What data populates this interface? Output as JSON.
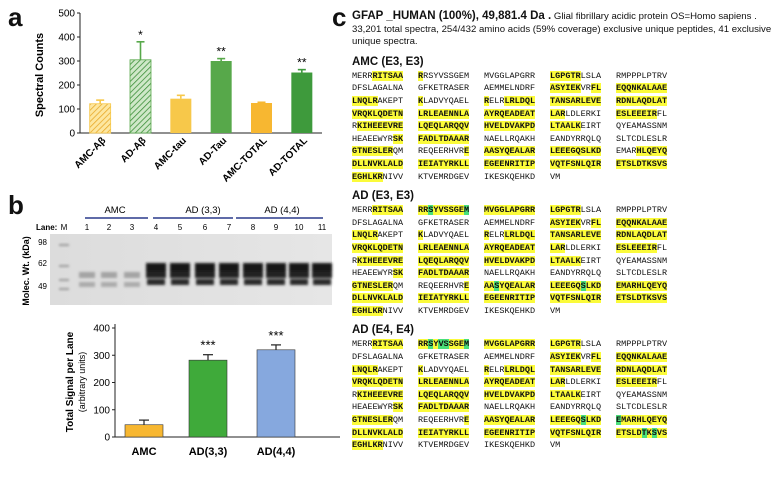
{
  "panel_a": {
    "letter": "a",
    "chart_data": {
      "type": "bar",
      "ylabel": "Spectral Counts",
      "ylim": [
        0,
        500
      ],
      "yticks": [
        0,
        100,
        200,
        300,
        400,
        500
      ],
      "categories": [
        "AMC-Aβ",
        "AD-Aβ",
        "AMC-tau",
        "AD-Tau",
        "AMC-TOTAL",
        "AD-TOTAL"
      ],
      "values": [
        122,
        305,
        143,
        300,
        125,
        252
      ],
      "errors": [
        15,
        75,
        14,
        10,
        3,
        12
      ],
      "significance": [
        "",
        "*",
        "",
        "**",
        "",
        "**"
      ],
      "colors": [
        "#f7c84a",
        "#57a84a",
        "#f7c84a",
        "#57a84a",
        "#f7b731",
        "#3e9a3c"
      ],
      "hatched": [
        true,
        true,
        false,
        false,
        false,
        false
      ]
    }
  },
  "panel_b": {
    "letter": "b",
    "blot": {
      "group_labels": [
        "AMC",
        "AD (3,3)",
        "AD (4,4)"
      ],
      "lane_label": "Lane:",
      "lanes": [
        "M",
        "1",
        "2",
        "3",
        "4",
        "5",
        "6",
        "7",
        "8",
        "9",
        "10",
        "11"
      ],
      "ylabel": "Molec. Wt. (kDa)",
      "markers": [
        "98",
        "62",
        "49"
      ]
    },
    "chart_data": {
      "type": "bar",
      "ylabel": "Total Signal per Lane",
      "ylabel_sub": "(arbitrary units)",
      "ylim": [
        0,
        400
      ],
      "yticks": [
        0,
        100,
        200,
        300,
        400
      ],
      "categories": [
        "AMC",
        "AD(3,3)",
        "AD(4,4)"
      ],
      "values": [
        45,
        282,
        320
      ],
      "errors": [
        17,
        20,
        18
      ],
      "significance": [
        "",
        "***",
        "***"
      ],
      "colors": [
        "#f7b731",
        "#3faa3a",
        "#86a8de"
      ]
    }
  },
  "panel_c": {
    "letter": "c",
    "header_bold": "GFAP _HUMAN (100%), 49,881.4 Da .",
    "header_rest": "Glial fibrillary acidic protein OS=Homo sapiens . 33,201 total spectra, 254/432 amino acids (59% coverage) exclusive unique peptides, 41 exclusive unique spectra.",
    "colors": {
      "coverage": "#fbfb3a",
      "modification": "#49e07a"
    },
    "blocks": [
      {
        "title": "AMC (E3, E3)",
        "rows": [
          [
            "MERR|RITSAA|",
            "|R|RSYVSSGEM",
            "MVGGLAPGRR",
            "|LGPGTR|LSLA",
            "RMPPPLPTRV"
          ],
          [
            "DFSLAGALNA",
            "GFKETRASER",
            "AEMMELNDRF",
            "|ASYIEK|VR|FL|",
            "|EQQNKALAAE|"
          ],
          [
            "|LNQLR|AKEPT",
            "|K|LADVYQAEL",
            "|R|ELR|LRLDQL|",
            "|TANSARLEVE|",
            "|RDNLAQDLAT|"
          ],
          [
            "|VRQKLQDETN|",
            "|LRLEAENNLA|",
            "|AYRQEADEAT|",
            "|LAR|LDLERKI",
            "|ESLEEEIR|FL"
          ],
          [
            "R|KIHEEEVRE|",
            "|LQEQLARQQV|",
            "|HVELDVAKPD|",
            "|LTAALK|EIRT",
            "QYEAMASSNM"
          ],
          [
            "HEAEEWYR|SK|",
            "|FADLTDAAAR|",
            "NAELLRQAKH",
            "EANDYRRQLQ",
            "SLTCDLESLR"
          ],
          [
            "|GTNESLER|QM",
            "REQEERHVR|E|",
            "|AASYQEALAR|",
            "|LEEEGQSLKD|",
            "EMAR|HLQEYQ|"
          ],
          [
            "|DLLNVKLALD|",
            "|IEIATYRKLL|",
            "|EGEENRITIP|",
            "|VQTFSNLQIR|",
            "|ETSLDTKSVS|"
          ],
          [
            "|EGHLKR|NIVV",
            "KTVEMRDGEV",
            "IKESKQEHKD",
            "VM",
            ""
          ]
        ]
      },
      {
        "title": "AD (E3, E3)",
        "rows": [
          [
            "MERR|RITSAA|",
            "|RR{S}YVSSGE{M}|",
            "|MVGGLAPGRR|",
            "|LGPGTR|LSLA",
            "RMPPPLPTRV"
          ],
          [
            "DFSLAGALNA",
            "GFKETRASER",
            "AEMMELNDRF",
            "|ASYIEK|VR|FL|",
            "|EQQNKALAAE|"
          ],
          [
            "|LNQLR|AKEPT",
            "|K|LADVYQAEL",
            "|R|ELR|LRLDQL|",
            "|TANSARLEVE|",
            "|RDNLAQDLAT|"
          ],
          [
            "|VRQKLQDETN|",
            "|LRLEAENNLA|",
            "|AYRQEADEAT|",
            "|LAR|LDLERKI",
            "|ESLEEEIR|FL"
          ],
          [
            "R|KIHEEEVRE|",
            "|LQEQLARQQV|",
            "|HVELDVAKPD|",
            "|LTAALK|EIRT",
            "QYEAMASSNM"
          ],
          [
            "HEAEEWYR|SK|",
            "|FADLTDAAAR|",
            "NAELLRQAKH",
            "EANDYRRQLQ",
            "SLTCDLESLR"
          ],
          [
            "|GTNESLER|QM",
            "REQEERHVR|E|",
            "|AA{S}YQEALAR|",
            "|LEEEGQ{S}LKD|",
            "|EMARHLQEYQ|"
          ],
          [
            "|DLLNVKLALD|",
            "|IEIATYRKLL|",
            "|EGEENRITIP|",
            "|VQTFSNLQIR|",
            "|ETSLDTKSVS|"
          ],
          [
            "|EGHLKR|NIVV",
            "KTVEMRDGEV",
            "IKESKQEHKD",
            "VM",
            ""
          ]
        ]
      },
      {
        "title": "AD (E4, E4)",
        "rows": [
          [
            "MERR|RITSAA|",
            "|RR{S}Y{V}{S}SGE{M}|",
            "|MVGGLAPGRR|",
            "|LGPGTR|LSLA",
            "RMPPPLPTRV"
          ],
          [
            "DFSLAGALNA",
            "GFKETRASER",
            "AEMMELNDRF",
            "|ASYIEK|VR|FL|",
            "|EQQNKALAAE|"
          ],
          [
            "|LNQLR|AKEPT",
            "|K|LADVYQAEL",
            "|R|ELR|LRLDQL|",
            "|TANSARLEVE|",
            "|RDNLAQDLAT|"
          ],
          [
            "|VRQKLQDETN|",
            "|LRLEAENNLA|",
            "|AYRQEADEAT|",
            "|LAR|LDLERKI",
            "|ESLEEEIR|FL"
          ],
          [
            "R|KIHEEEVRE|",
            "|LQEQLARQQV|",
            "|HVELDVAKPD|",
            "|LTAALK|EIRT",
            "QYEAMASSNM"
          ],
          [
            "HEAEEWYR|SK|",
            "|FADLTDAAAR|",
            "NAELLRQAKH",
            "EANDYRRQLQ",
            "SLTCDLESLR"
          ],
          [
            "|GTNESLER|QM",
            "REQEERHVR|E|",
            "|AASYQEALAR|",
            "|LEEEGQ{S}LKD|",
            "|{E}MARHLQEYQ|"
          ],
          [
            "|DLLNVKLALD|",
            "|IEIATYRKLL|",
            "|EGEENRITIP|",
            "|VQTFSNLQIR|",
            "|ETSLD{T}K{S}VS|"
          ],
          [
            "|EGHLKR|NIVV",
            "KTVEMRDGEV",
            "IKESKQEHKD",
            "VM",
            ""
          ]
        ]
      }
    ]
  }
}
